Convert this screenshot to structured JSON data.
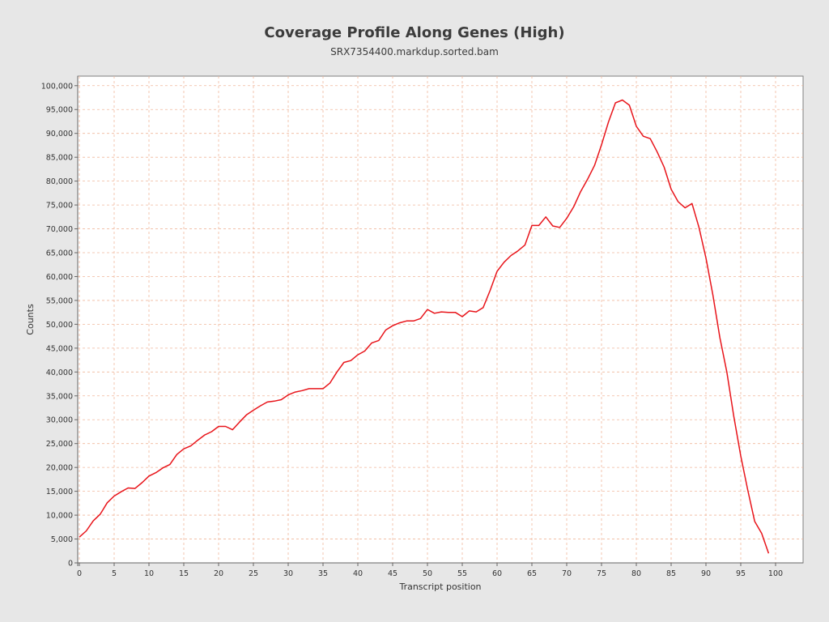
{
  "chart_data": {
    "type": "line",
    "title": "Coverage Profile Along Genes (High)",
    "subtitle": "SRX7354400.markdup.sorted.bam",
    "xlabel": "Transcript position",
    "ylabel": "Counts",
    "xlim": [
      0,
      104
    ],
    "ylim": [
      0,
      102000
    ],
    "x_ticks": [
      0,
      5,
      10,
      15,
      20,
      25,
      30,
      35,
      40,
      45,
      50,
      55,
      60,
      65,
      70,
      75,
      80,
      85,
      90,
      95,
      100
    ],
    "y_ticks": [
      0,
      5000,
      10000,
      15000,
      20000,
      25000,
      30000,
      35000,
      40000,
      45000,
      50000,
      55000,
      60000,
      65000,
      70000,
      75000,
      80000,
      85000,
      90000,
      95000,
      100000
    ],
    "grid": true,
    "series_color": "#e8141a",
    "series": [
      {
        "name": "",
        "x": [
          0,
          1,
          2,
          3,
          4,
          5,
          6,
          7,
          8,
          9,
          10,
          11,
          12,
          13,
          14,
          15,
          16,
          17,
          18,
          19,
          20,
          21,
          22,
          23,
          24,
          25,
          26,
          27,
          28,
          29,
          30,
          31,
          32,
          33,
          34,
          35,
          36,
          37,
          38,
          39,
          40,
          41,
          42,
          43,
          44,
          45,
          46,
          47,
          48,
          49,
          50,
          51,
          52,
          53,
          54,
          55,
          56,
          57,
          58,
          59,
          60,
          61,
          62,
          63,
          64,
          65,
          66,
          67,
          68,
          69,
          70,
          71,
          72,
          73,
          74,
          75,
          76,
          77,
          78,
          79,
          80,
          81,
          82,
          83,
          84,
          85,
          86,
          87,
          88,
          89,
          90,
          91,
          92,
          93,
          94,
          95,
          96,
          97,
          98,
          99
        ],
        "y": [
          5400,
          6700,
          8800,
          10200,
          12600,
          14000,
          14900,
          15700,
          15600,
          16800,
          18200,
          18900,
          19900,
          20600,
          22700,
          23900,
          24500,
          25700,
          26800,
          27500,
          28600,
          28600,
          27900,
          29500,
          31000,
          32000,
          32900,
          33700,
          33900,
          34200,
          35200,
          35800,
          36100,
          36500,
          36500,
          36500,
          37700,
          40000,
          42000,
          42400,
          43600,
          44400,
          46100,
          46600,
          48800,
          49700,
          50300,
          50700,
          50700,
          51200,
          53100,
          52300,
          52600,
          52500,
          52500,
          51600,
          52800,
          52600,
          53500,
          57100,
          61100,
          63000,
          64400,
          65400,
          66600,
          70700,
          70700,
          72500,
          70600,
          70300,
          72200,
          74600,
          77800,
          80400,
          83300,
          87600,
          92400,
          96400,
          97000,
          95900,
          91500,
          89400,
          88900,
          86100,
          82900,
          78300,
          75700,
          74400,
          75300,
          70300,
          63900,
          56100,
          47200,
          40000,
          30700,
          22400,
          15300,
          8700,
          6200,
          2000
        ]
      }
    ]
  }
}
